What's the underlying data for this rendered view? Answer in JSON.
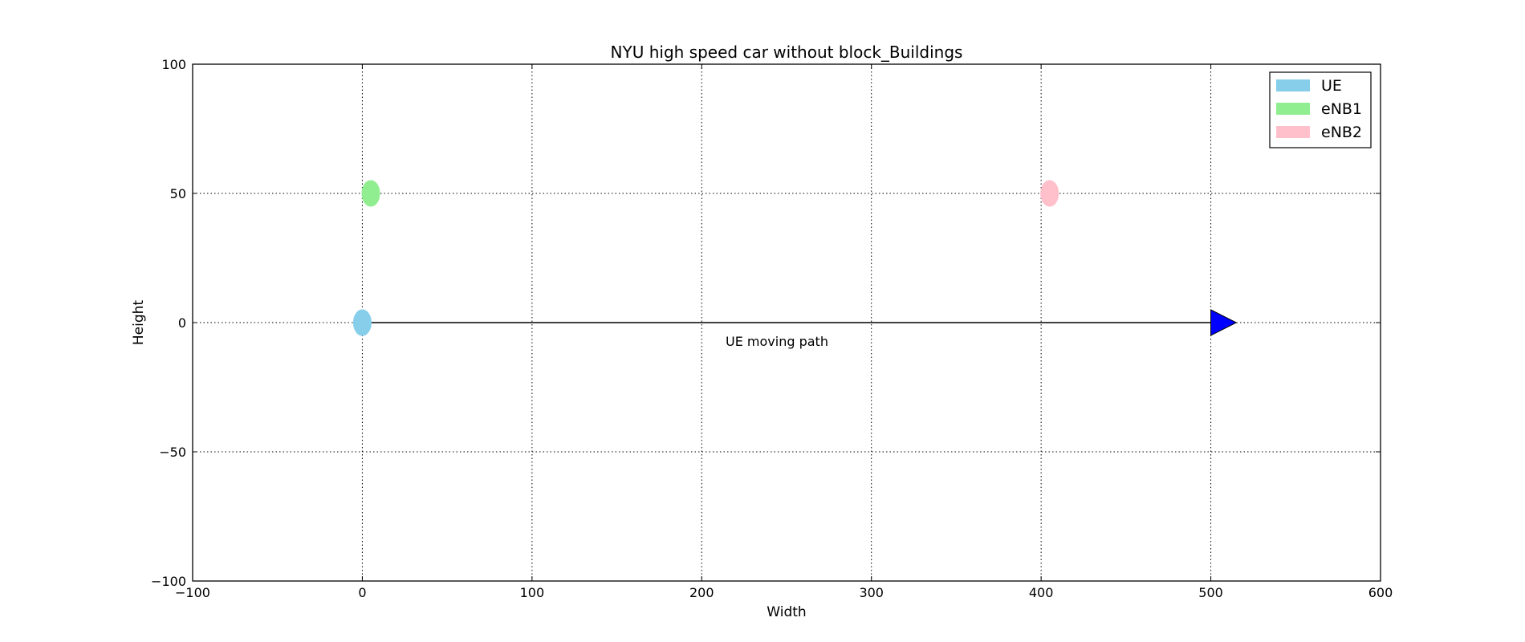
{
  "chart_data": {
    "type": "scatter",
    "title": "NYU high speed car without block_Buildings",
    "xlabel": "Width",
    "ylabel": "Height",
    "xlim": [
      -100,
      600
    ],
    "ylim": [
      -100,
      100
    ],
    "xticks": [
      -100,
      0,
      100,
      200,
      300,
      400,
      500,
      600
    ],
    "yticks": [
      -100,
      -50,
      0,
      50,
      100
    ],
    "xtick_labels": [
      "−100",
      "0",
      "100",
      "200",
      "300",
      "400",
      "500",
      "600"
    ],
    "ytick_labels": [
      "−100",
      "−50",
      "0",
      "50",
      "100"
    ],
    "grid": true,
    "legend_position": "top-right",
    "series": [
      {
        "name": "UE",
        "x": 0,
        "y": 0,
        "color": "#87ceeb"
      },
      {
        "name": "eNB1",
        "x": 5,
        "y": 50,
        "color": "#90ee90"
      },
      {
        "name": "eNB2",
        "x": 405,
        "y": 50,
        "color": "#ffc0cb"
      }
    ],
    "path": {
      "x_start": 0,
      "y_start": 0,
      "x_end": 515,
      "y_end": 0,
      "head_color": "#0000ff"
    },
    "annotations": [
      {
        "text": "UE moving path",
        "x": 250,
        "y": -8
      }
    ]
  }
}
